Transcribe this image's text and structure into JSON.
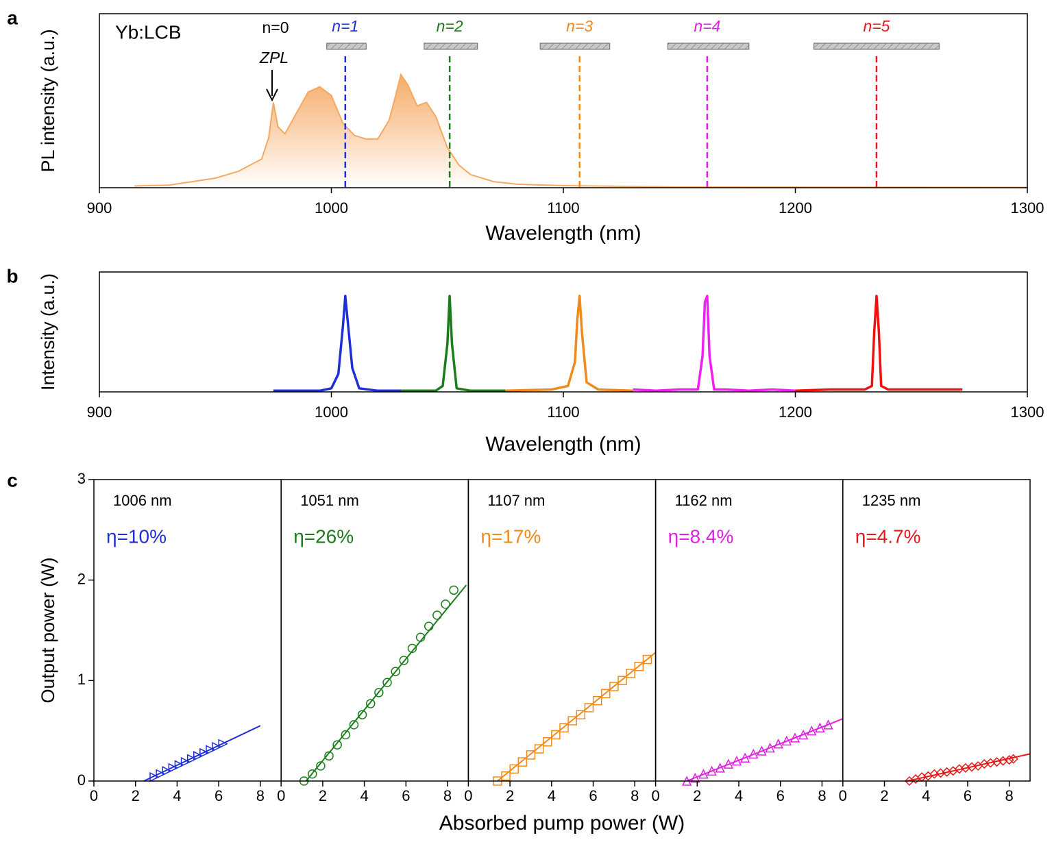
{
  "chart_data": [
    {
      "type": "area",
      "panel": "a",
      "label": "Yb:LCB",
      "annotations": [
        "n=0",
        "ZPL"
      ],
      "xlabel": "Wavelength (nm)",
      "ylabel": "PL intensity (a.u.)",
      "xlim": [
        900,
        1300
      ],
      "xticks": [
        900,
        1000,
        1100,
        1200,
        1300
      ],
      "ylim": [
        0,
        1
      ],
      "color": "#f5a860",
      "x": [
        915,
        930,
        950,
        960,
        970,
        973,
        975,
        977,
        980,
        985,
        990,
        995,
        1000,
        1005,
        1010,
        1015,
        1020,
        1025,
        1030,
        1033,
        1037,
        1041,
        1045,
        1050,
        1055,
        1060,
        1070,
        1080,
        1100,
        1150,
        1300
      ],
      "values": [
        0.01,
        0.015,
        0.055,
        0.095,
        0.165,
        0.29,
        0.49,
        0.35,
        0.31,
        0.43,
        0.55,
        0.58,
        0.53,
        0.37,
        0.3,
        0.28,
        0.28,
        0.39,
        0.65,
        0.59,
        0.47,
        0.49,
        0.41,
        0.23,
        0.13,
        0.075,
        0.035,
        0.02,
        0.012,
        0.004,
        0.002
      ],
      "modes": [
        {
          "label": "n=1",
          "x": 1006,
          "band": [
            998,
            1015
          ],
          "color": "#1f2fd6"
        },
        {
          "label": "n=2",
          "x": 1051,
          "band": [
            1040,
            1063
          ],
          "color": "#1a7d1a"
        },
        {
          "label": "n=3",
          "x": 1107,
          "band": [
            1090,
            1120
          ],
          "color": "#f08a1c"
        },
        {
          "label": "n=4",
          "x": 1162,
          "band": [
            1145,
            1180
          ],
          "color": "#e020e0"
        },
        {
          "label": "n=5",
          "x": 1235,
          "band": [
            1208,
            1262
          ],
          "color": "#e31a1c"
        }
      ]
    },
    {
      "type": "line",
      "panel": "b",
      "xlabel": "Wavelength (nm)",
      "ylabel": "Intensity (a.u.)",
      "xlim": [
        900,
        1300
      ],
      "xticks": [
        900,
        1000,
        1100,
        1200,
        1300
      ],
      "ylim": [
        0,
        1
      ],
      "series": [
        {
          "color": "#1f2fd6",
          "x": [
            975,
            995,
            1000,
            1003,
            1005,
            1006,
            1007,
            1009,
            1012,
            1020,
            1030
          ],
          "values": [
            0.01,
            0.01,
            0.03,
            0.15,
            0.55,
            0.8,
            0.6,
            0.2,
            0.03,
            0.01,
            0.01
          ]
        },
        {
          "color": "#1a7d1a",
          "x": [
            1030,
            1045,
            1048,
            1050,
            1051,
            1052,
            1054,
            1060,
            1075
          ],
          "values": [
            0.01,
            0.01,
            0.05,
            0.4,
            0.8,
            0.4,
            0.03,
            0.01,
            0.01
          ]
        },
        {
          "color": "#f08a1c",
          "x": [
            1075,
            1095,
            1102,
            1105,
            1106,
            1107,
            1108,
            1110,
            1115,
            1130
          ],
          "values": [
            0.01,
            0.02,
            0.05,
            0.25,
            0.6,
            0.8,
            0.5,
            0.08,
            0.02,
            0.01
          ]
        },
        {
          "color": "#f020f0",
          "x": [
            1130,
            1140,
            1150,
            1158,
            1160,
            1161,
            1162,
            1163,
            1165,
            1170,
            1180,
            1190,
            1200
          ],
          "values": [
            0.02,
            0.01,
            0.02,
            0.02,
            0.3,
            0.75,
            0.8,
            0.3,
            0.02,
            0.02,
            0.01,
            0.02,
            0.01
          ]
        },
        {
          "color": "#f01010",
          "x": [
            1200,
            1215,
            1230,
            1233,
            1234,
            1235,
            1236,
            1237,
            1240,
            1255,
            1265,
            1272
          ],
          "values": [
            0.01,
            0.02,
            0.02,
            0.05,
            0.5,
            0.8,
            0.5,
            0.05,
            0.02,
            0.02,
            0.02,
            0.02
          ]
        }
      ]
    },
    {
      "type": "scatter-panels",
      "panel": "c",
      "xlabel": "Absorbed pump power (W)",
      "ylabel": "Output power (W)",
      "xlim": [
        0,
        9
      ],
      "xticks": [
        0,
        2,
        4,
        6,
        8
      ],
      "ylim": [
        0,
        3
      ],
      "yticks": [
        0,
        1,
        2,
        3
      ],
      "panels": [
        {
          "label": "1006 nm",
          "efficiency": "η=10%",
          "color": "#1f2fd6",
          "marker": "triangle-right",
          "x": [
            2.9,
            3.2,
            3.5,
            3.8,
            4.1,
            4.4,
            4.7,
            5.0,
            5.3,
            5.6,
            5.9,
            6.2
          ],
          "values": [
            0.04,
            0.07,
            0.1,
            0.13,
            0.16,
            0.19,
            0.22,
            0.25,
            0.28,
            0.31,
            0.34,
            0.37
          ],
          "fit": {
            "x": [
              2.4,
              8
            ],
            "values": [
              0,
              0.55
            ]
          }
        },
        {
          "label": "1051 nm",
          "efficiency": "η=26%",
          "color": "#1a7d1a",
          "marker": "circle",
          "x": [
            1.1,
            1.5,
            1.9,
            2.3,
            2.7,
            3.1,
            3.5,
            3.9,
            4.3,
            4.7,
            5.1,
            5.5,
            5.9,
            6.3,
            6.7,
            7.1,
            7.5,
            7.9,
            8.3
          ],
          "values": [
            0,
            0.07,
            0.15,
            0.25,
            0.36,
            0.46,
            0.56,
            0.66,
            0.77,
            0.88,
            0.98,
            1.09,
            1.2,
            1.32,
            1.43,
            1.54,
            1.65,
            1.76,
            1.9
          ],
          "fit": {
            "x": [
              1.2,
              8.9
            ],
            "values": [
              0,
              1.95
            ]
          }
        },
        {
          "label": "1107 nm",
          "efficiency": "η=17%",
          "color": "#f08a1c",
          "marker": "square",
          "x": [
            1.4,
            1.8,
            2.2,
            2.6,
            3.0,
            3.4,
            3.8,
            4.2,
            4.6,
            5.0,
            5.4,
            5.8,
            6.2,
            6.6,
            7.0,
            7.4,
            7.8,
            8.2,
            8.6
          ],
          "values": [
            0,
            0.05,
            0.12,
            0.19,
            0.26,
            0.32,
            0.39,
            0.46,
            0.53,
            0.6,
            0.66,
            0.73,
            0.8,
            0.87,
            0.94,
            1.0,
            1.07,
            1.14,
            1.21
          ],
          "fit": {
            "x": [
              1.4,
              9
            ],
            "values": [
              0,
              1.28
            ]
          }
        },
        {
          "label": "1162 nm",
          "efficiency": "η=8.4%",
          "color": "#e020e0",
          "marker": "triangle-up",
          "x": [
            1.5,
            1.9,
            2.3,
            2.7,
            3.1,
            3.5,
            3.9,
            4.3,
            4.7,
            5.1,
            5.5,
            5.9,
            6.3,
            6.7,
            7.1,
            7.5,
            7.9,
            8.3
          ],
          "values": [
            0,
            0.03,
            0.07,
            0.1,
            0.13,
            0.17,
            0.2,
            0.23,
            0.27,
            0.3,
            0.33,
            0.37,
            0.4,
            0.43,
            0.46,
            0.5,
            0.53,
            0.56
          ],
          "fit": {
            "x": [
              1.5,
              9
            ],
            "values": [
              0,
              0.62
            ]
          }
        },
        {
          "label": "1235 nm",
          "efficiency": "η=4.7%",
          "color": "#e31a1c",
          "marker": "diamond",
          "x": [
            3.2,
            3.5,
            3.8,
            4.1,
            4.4,
            4.7,
            5.0,
            5.3,
            5.6,
            5.9,
            6.2,
            6.5,
            6.8,
            7.1,
            7.4,
            7.7,
            8.0,
            8.2
          ],
          "values": [
            0,
            0.02,
            0.04,
            0.05,
            0.07,
            0.08,
            0.09,
            0.1,
            0.12,
            0.13,
            0.14,
            0.15,
            0.17,
            0.18,
            0.19,
            0.2,
            0.21,
            0.22
          ],
          "fit": {
            "x": [
              3.1,
              9
            ],
            "values": [
              0,
              0.27
            ]
          }
        }
      ]
    }
  ]
}
